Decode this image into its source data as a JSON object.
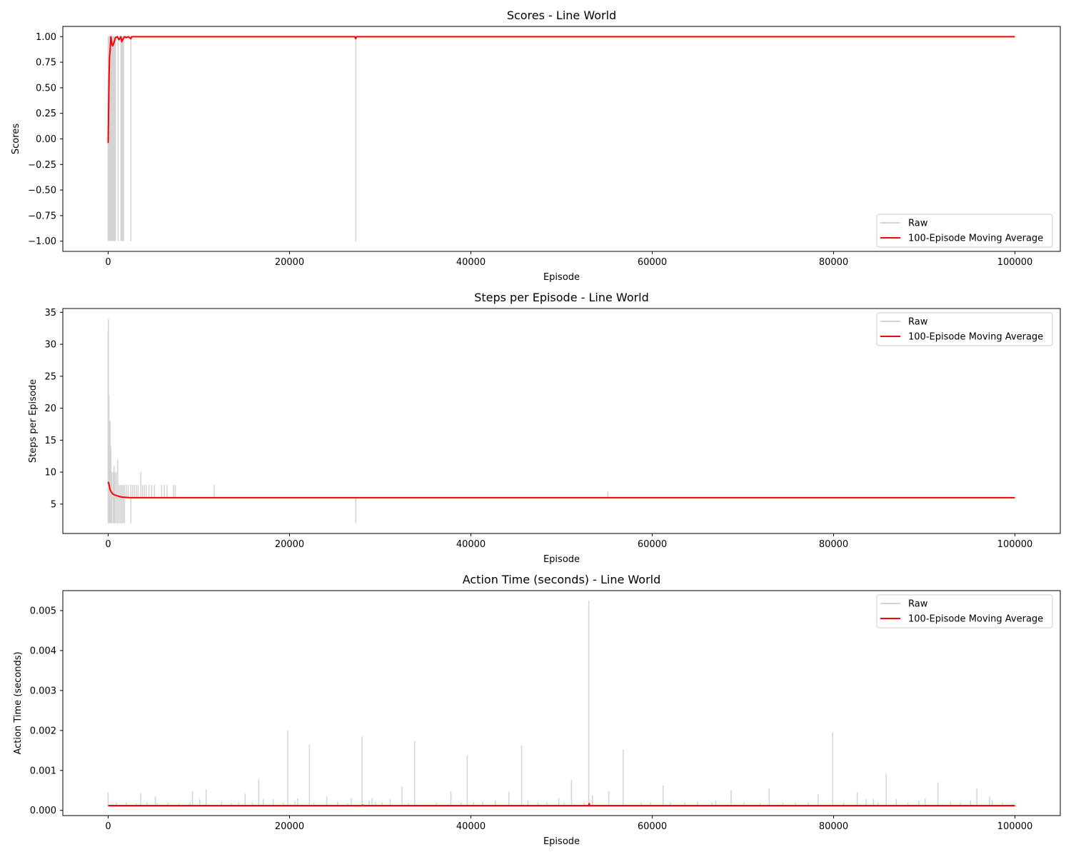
{
  "colors": {
    "raw": "#d3d3d3",
    "moving_average": "#ff0000"
  },
  "chart_data": [
    {
      "type": "line",
      "title": "Scores - Line World",
      "xlabel": "Episode",
      "ylabel": "Scores",
      "xlim": [
        -5000,
        105000
      ],
      "ylim": [
        -1.1,
        1.1
      ],
      "xticks": [
        0,
        20000,
        40000,
        60000,
        80000,
        100000
      ],
      "xtick_labels": [
        "0",
        "20000",
        "40000",
        "60000",
        "80000",
        "100000"
      ],
      "yticks": [
        -1.0,
        -0.75,
        -0.5,
        -0.25,
        0.0,
        0.25,
        0.5,
        0.75,
        1.0
      ],
      "ytick_labels": [
        "−1.00",
        "−0.75",
        "−0.50",
        "−0.25",
        "0.00",
        "0.25",
        "0.50",
        "0.75",
        "1.00"
      ],
      "legend": "bottom-right",
      "legend_labels": [
        "Raw",
        "100-Episode Moving Average"
      ],
      "raw_spikes": [
        {
          "x": 0,
          "y0": -1.0,
          "y1": 1.0
        },
        {
          "x": 100,
          "y0": -1.0,
          "y1": 1.0
        },
        {
          "x": 200,
          "y0": -1.0,
          "y1": 1.0
        },
        {
          "x": 300,
          "y0": -1.0,
          "y1": 1.0
        },
        {
          "x": 400,
          "y0": -1.0,
          "y1": 1.0
        },
        {
          "x": 500,
          "y0": -1.0,
          "y1": 1.0
        },
        {
          "x": 600,
          "y0": -1.0,
          "y1": 1.0
        },
        {
          "x": 700,
          "y0": -1.0,
          "y1": 1.0
        },
        {
          "x": 800,
          "y0": -1.0,
          "y1": 1.0
        },
        {
          "x": 1100,
          "y0": -1.0,
          "y1": 1.0
        },
        {
          "x": 1400,
          "y0": -1.0,
          "y1": 1.0
        },
        {
          "x": 1500,
          "y0": -1.0,
          "y1": 1.0
        },
        {
          "x": 1600,
          "y0": -1.0,
          "y1": 1.0
        },
        {
          "x": 1700,
          "y0": -1.0,
          "y1": 1.0
        },
        {
          "x": 2500,
          "y0": -1.0,
          "y1": 1.0
        },
        {
          "x": 27300,
          "y0": -1.0,
          "y1": 1.0
        }
      ],
      "raw_baseline": {
        "x0": 0,
        "x1": 100000,
        "y": 1.0
      },
      "moving_average": {
        "x": [
          0,
          50,
          100,
          150,
          200,
          300,
          400,
          500,
          600,
          800,
          1000,
          1200,
          1400,
          1500,
          1600,
          1800,
          2000,
          2200,
          2500,
          2600,
          3000,
          27200,
          27300,
          27400,
          100000
        ],
        "y": [
          -0.04,
          0.3,
          0.62,
          0.8,
          0.85,
          1.0,
          0.93,
          0.91,
          0.93,
          0.99,
          1.0,
          0.97,
          1.0,
          0.95,
          0.97,
          1.0,
          0.99,
          1.0,
          0.98,
          1.0,
          1.0,
          1.0,
          0.98,
          1.0,
          1.0
        ]
      }
    },
    {
      "type": "line",
      "title": "Steps per Episode - Line World",
      "xlabel": "Episode",
      "ylabel": "Steps per Episode",
      "xlim": [
        -5000,
        105000
      ],
      "ylim": [
        0.4,
        35.6
      ],
      "xticks": [
        0,
        20000,
        40000,
        60000,
        80000,
        100000
      ],
      "xtick_labels": [
        "0",
        "20000",
        "40000",
        "60000",
        "80000",
        "100000"
      ],
      "yticks": [
        5,
        10,
        15,
        20,
        25,
        30,
        35
      ],
      "ytick_labels": [
        "5",
        "10",
        "15",
        "20",
        "25",
        "30",
        "35"
      ],
      "legend": "top-right",
      "legend_labels": [
        "Raw",
        "100-Episode Moving Average"
      ],
      "raw_spikes": [
        {
          "x": 0,
          "y0": 2,
          "y1": 32
        },
        {
          "x": 30,
          "y0": 2,
          "y1": 34
        },
        {
          "x": 80,
          "y0": 2,
          "y1": 22
        },
        {
          "x": 150,
          "y0": 2,
          "y1": 18
        },
        {
          "x": 220,
          "y0": 2,
          "y1": 18
        },
        {
          "x": 300,
          "y0": 2,
          "y1": 14
        },
        {
          "x": 400,
          "y0": 2,
          "y1": 10
        },
        {
          "x": 550,
          "y0": 2,
          "y1": 10
        },
        {
          "x": 650,
          "y0": 2,
          "y1": 11
        },
        {
          "x": 750,
          "y0": 2,
          "y1": 10
        },
        {
          "x": 900,
          "y0": 2,
          "y1": 10
        },
        {
          "x": 1050,
          "y0": 2,
          "y1": 12
        },
        {
          "x": 1200,
          "y0": 2,
          "y1": 8
        },
        {
          "x": 1350,
          "y0": 2,
          "y1": 8
        },
        {
          "x": 1500,
          "y0": 2,
          "y1": 8
        },
        {
          "x": 1650,
          "y0": 2,
          "y1": 8
        },
        {
          "x": 1800,
          "y0": 2,
          "y1": 8
        },
        {
          "x": 2000,
          "y0": 6,
          "y1": 8
        },
        {
          "x": 2200,
          "y0": 6,
          "y1": 8
        },
        {
          "x": 2500,
          "y0": 2,
          "y1": 8
        },
        {
          "x": 2700,
          "y0": 6,
          "y1": 8
        },
        {
          "x": 2900,
          "y0": 6,
          "y1": 8
        },
        {
          "x": 3100,
          "y0": 6,
          "y1": 8
        },
        {
          "x": 3300,
          "y0": 6,
          "y1": 8
        },
        {
          "x": 3600,
          "y0": 6,
          "y1": 10
        },
        {
          "x": 3800,
          "y0": 6,
          "y1": 8
        },
        {
          "x": 4000,
          "y0": 6,
          "y1": 8
        },
        {
          "x": 4200,
          "y0": 6,
          "y1": 8
        },
        {
          "x": 4500,
          "y0": 6,
          "y1": 8
        },
        {
          "x": 4800,
          "y0": 6,
          "y1": 8
        },
        {
          "x": 5100,
          "y0": 6,
          "y1": 8
        },
        {
          "x": 5900,
          "y0": 6,
          "y1": 8
        },
        {
          "x": 6200,
          "y0": 6,
          "y1": 8
        },
        {
          "x": 6500,
          "y0": 6,
          "y1": 8
        },
        {
          "x": 7200,
          "y0": 6,
          "y1": 8
        },
        {
          "x": 7400,
          "y0": 6,
          "y1": 8
        },
        {
          "x": 11700,
          "y0": 6,
          "y1": 8
        },
        {
          "x": 27300,
          "y0": 2,
          "y1": 6
        },
        {
          "x": 55100,
          "y0": 6,
          "y1": 7
        }
      ],
      "raw_baseline": {
        "x0": 0,
        "x1": 100000,
        "y": 6
      },
      "moving_average": {
        "x": [
          0,
          100,
          200,
          300,
          400,
          500,
          600,
          800,
          1000,
          1200,
          1500,
          2000,
          2500,
          3000,
          100000
        ],
        "y": [
          8.5,
          8.0,
          7.3,
          7.0,
          6.8,
          6.6,
          6.5,
          6.4,
          6.3,
          6.2,
          6.1,
          6.05,
          6.0,
          6.0,
          6.0
        ]
      }
    },
    {
      "type": "line",
      "title": "Action Time (seconds) - Line World",
      "xlabel": "Episode",
      "ylabel": "Action Time (seconds)",
      "xlim": [
        -5000,
        105000
      ],
      "ylim": [
        -0.00013,
        0.0055
      ],
      "xticks": [
        0,
        20000,
        40000,
        60000,
        80000,
        100000
      ],
      "xtick_labels": [
        "0",
        "20000",
        "40000",
        "60000",
        "80000",
        "100000"
      ],
      "yticks": [
        0.0,
        0.001,
        0.002,
        0.003,
        0.004,
        0.005
      ],
      "ytick_labels": [
        "0.000",
        "0.001",
        "0.002",
        "0.003",
        "0.004",
        "0.005"
      ],
      "legend": "top-right",
      "legend_labels": [
        "Raw",
        "100-Episode Moving Average"
      ],
      "raw_spikes": [
        {
          "x": 0,
          "y0": 0.0001,
          "y1": 0.00045
        },
        {
          "x": 900,
          "y0": 0.0001,
          "y1": 0.0002
        },
        {
          "x": 2000,
          "y0": 0.0001,
          "y1": 0.0002
        },
        {
          "x": 3100,
          "y0": 0.0001,
          "y1": 0.00018
        },
        {
          "x": 3600,
          "y0": 0.0001,
          "y1": 0.00043
        },
        {
          "x": 4300,
          "y0": 0.0001,
          "y1": 0.0002
        },
        {
          "x": 5200,
          "y0": 0.0001,
          "y1": 0.00035
        },
        {
          "x": 5400,
          "y0": 0.0001,
          "y1": 0.00018
        },
        {
          "x": 6600,
          "y0": 0.0001,
          "y1": 0.0002
        },
        {
          "x": 7800,
          "y0": 0.0001,
          "y1": 0.00018
        },
        {
          "x": 9000,
          "y0": 0.0001,
          "y1": 0.0002
        },
        {
          "x": 9300,
          "y0": 0.0001,
          "y1": 0.00048
        },
        {
          "x": 10100,
          "y0": 0.0001,
          "y1": 0.00028
        },
        {
          "x": 10800,
          "y0": 0.0001,
          "y1": 0.00052
        },
        {
          "x": 12500,
          "y0": 0.0001,
          "y1": 0.00022
        },
        {
          "x": 13600,
          "y0": 0.0001,
          "y1": 0.00018
        },
        {
          "x": 14400,
          "y0": 0.0001,
          "y1": 0.0002
        },
        {
          "x": 15100,
          "y0": 0.0001,
          "y1": 0.00042
        },
        {
          "x": 15900,
          "y0": 0.0001,
          "y1": 0.0002
        },
        {
          "x": 16600,
          "y0": 0.0001,
          "y1": 0.00078
        },
        {
          "x": 17100,
          "y0": 0.0001,
          "y1": 0.00028
        },
        {
          "x": 18200,
          "y0": 0.0001,
          "y1": 0.00028
        },
        {
          "x": 19300,
          "y0": 0.0001,
          "y1": 0.0002
        },
        {
          "x": 19800,
          "y0": 0.0001,
          "y1": 0.002
        },
        {
          "x": 20600,
          "y0": 0.0001,
          "y1": 0.00022
        },
        {
          "x": 20900,
          "y0": 0.0001,
          "y1": 0.0003
        },
        {
          "x": 22200,
          "y0": 0.0001,
          "y1": 0.00165
        },
        {
          "x": 22700,
          "y0": 0.0001,
          "y1": 0.0002
        },
        {
          "x": 24100,
          "y0": 0.0001,
          "y1": 0.00035
        },
        {
          "x": 25300,
          "y0": 0.0001,
          "y1": 0.00022
        },
        {
          "x": 26400,
          "y0": 0.0001,
          "y1": 0.00018
        },
        {
          "x": 26800,
          "y0": 0.0001,
          "y1": 0.0003
        },
        {
          "x": 28000,
          "y0": 0.0001,
          "y1": 0.00185
        },
        {
          "x": 28800,
          "y0": 0.0001,
          "y1": 0.00025
        },
        {
          "x": 29100,
          "y0": 0.0001,
          "y1": 0.0003
        },
        {
          "x": 29500,
          "y0": 0.0001,
          "y1": 0.00022
        },
        {
          "x": 30200,
          "y0": 0.0001,
          "y1": 0.0002
        },
        {
          "x": 31100,
          "y0": 0.0001,
          "y1": 0.00028
        },
        {
          "x": 32400,
          "y0": 0.0001,
          "y1": 0.0006
        },
        {
          "x": 33100,
          "y0": 0.0001,
          "y1": 0.00018
        },
        {
          "x": 33800,
          "y0": 0.0001,
          "y1": 0.00173
        },
        {
          "x": 36200,
          "y0": 0.0001,
          "y1": 0.0002
        },
        {
          "x": 37800,
          "y0": 0.0001,
          "y1": 0.00048
        },
        {
          "x": 38900,
          "y0": 0.0001,
          "y1": 0.0002
        },
        {
          "x": 39600,
          "y0": 0.0001,
          "y1": 0.00138
        },
        {
          "x": 40300,
          "y0": 0.0001,
          "y1": 0.0002
        },
        {
          "x": 41300,
          "y0": 0.0001,
          "y1": 0.00022
        },
        {
          "x": 42700,
          "y0": 0.0001,
          "y1": 0.00025
        },
        {
          "x": 44200,
          "y0": 0.0001,
          "y1": 0.00047
        },
        {
          "x": 45600,
          "y0": 0.0001,
          "y1": 0.00163
        },
        {
          "x": 46300,
          "y0": 0.0001,
          "y1": 0.00025
        },
        {
          "x": 47400,
          "y0": 0.0001,
          "y1": 0.0002
        },
        {
          "x": 48400,
          "y0": 0.0001,
          "y1": 0.0002
        },
        {
          "x": 49700,
          "y0": 0.0001,
          "y1": 0.0003
        },
        {
          "x": 50300,
          "y0": 0.0001,
          "y1": 0.0002
        },
        {
          "x": 51100,
          "y0": 0.0001,
          "y1": 0.00077
        },
        {
          "x": 52500,
          "y0": 0.0001,
          "y1": 0.0002
        },
        {
          "x": 53000,
          "y0": 0.0001,
          "y1": 0.00525
        },
        {
          "x": 53400,
          "y0": 0.0001,
          "y1": 0.00038
        },
        {
          "x": 55200,
          "y0": 0.0001,
          "y1": 0.00048
        },
        {
          "x": 56800,
          "y0": 0.0001,
          "y1": 0.00152
        },
        {
          "x": 58800,
          "y0": 0.0001,
          "y1": 0.0002
        },
        {
          "x": 59800,
          "y0": 0.0001,
          "y1": 0.0002
        },
        {
          "x": 61200,
          "y0": 0.0001,
          "y1": 0.00063
        },
        {
          "x": 62000,
          "y0": 0.0001,
          "y1": 0.0002
        },
        {
          "x": 63600,
          "y0": 0.0001,
          "y1": 0.0002
        },
        {
          "x": 65000,
          "y0": 0.0001,
          "y1": 0.00022
        },
        {
          "x": 66600,
          "y0": 0.0001,
          "y1": 0.0002
        },
        {
          "x": 67000,
          "y0": 0.0001,
          "y1": 0.00025
        },
        {
          "x": 68700,
          "y0": 0.0001,
          "y1": 0.0005
        },
        {
          "x": 70100,
          "y0": 0.0001,
          "y1": 0.0002
        },
        {
          "x": 71900,
          "y0": 0.0001,
          "y1": 0.00018
        },
        {
          "x": 72900,
          "y0": 0.0001,
          "y1": 0.00055
        },
        {
          "x": 74400,
          "y0": 0.0001,
          "y1": 0.0002
        },
        {
          "x": 75800,
          "y0": 0.0001,
          "y1": 0.0002
        },
        {
          "x": 77200,
          "y0": 0.0001,
          "y1": 0.0002
        },
        {
          "x": 78300,
          "y0": 0.0001,
          "y1": 0.0004
        },
        {
          "x": 79900,
          "y0": 0.0001,
          "y1": 0.00195
        },
        {
          "x": 81100,
          "y0": 0.0001,
          "y1": 0.0002
        },
        {
          "x": 82600,
          "y0": 0.0001,
          "y1": 0.00045
        },
        {
          "x": 83600,
          "y0": 0.0001,
          "y1": 0.00028
        },
        {
          "x": 84400,
          "y0": 0.0001,
          "y1": 0.00028
        },
        {
          "x": 84900,
          "y0": 0.0001,
          "y1": 0.0002
        },
        {
          "x": 85800,
          "y0": 0.0001,
          "y1": 0.00092
        },
        {
          "x": 86900,
          "y0": 0.0001,
          "y1": 0.00028
        },
        {
          "x": 88200,
          "y0": 0.0001,
          "y1": 0.0002
        },
        {
          "x": 89400,
          "y0": 0.0001,
          "y1": 0.00025
        },
        {
          "x": 90100,
          "y0": 0.0001,
          "y1": 0.0003
        },
        {
          "x": 91500,
          "y0": 0.0001,
          "y1": 0.0007
        },
        {
          "x": 92900,
          "y0": 0.0001,
          "y1": 0.00022
        },
        {
          "x": 94000,
          "y0": 0.0001,
          "y1": 0.0002
        },
        {
          "x": 95100,
          "y0": 0.0001,
          "y1": 0.00025
        },
        {
          "x": 95800,
          "y0": 0.0001,
          "y1": 0.00055
        },
        {
          "x": 97200,
          "y0": 0.0001,
          "y1": 0.00035
        },
        {
          "x": 97500,
          "y0": 0.0001,
          "y1": 0.00025
        },
        {
          "x": 98600,
          "y0": 0.0001,
          "y1": 0.0002
        }
      ],
      "raw_baseline": {
        "x0": 0,
        "x1": 100000,
        "y": 0.0001
      },
      "moving_average": {
        "x": [
          0,
          20000,
          28000,
          28100,
          28200,
          53000,
          53050,
          53100,
          100000
        ],
        "y": [
          0.00012,
          0.00012,
          0.00012,
          0.00013,
          0.00012,
          0.00012,
          0.00017,
          0.00012,
          0.00012
        ]
      }
    }
  ]
}
